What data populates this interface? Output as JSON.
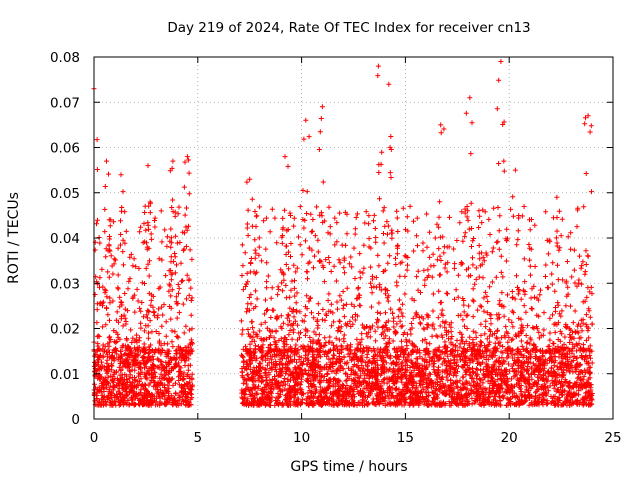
{
  "chart_data": {
    "type": "scatter",
    "title": "Day 219 of 2024, Rate Of TEC Index for receiver cn13",
    "xlabel": "GPS time / hours",
    "ylabel": "ROTI / TECUs",
    "xlim": [
      0,
      25
    ],
    "ylim": [
      0,
      0.08
    ],
    "x_ticks": [
      0,
      5,
      10,
      15,
      20,
      25
    ],
    "x_tick_labels": [
      "0",
      "5",
      "10",
      "15",
      "20",
      "25"
    ],
    "y_ticks": [
      0,
      0.01,
      0.02,
      0.03,
      0.04,
      0.05,
      0.06,
      0.07,
      0.08
    ],
    "y_tick_labels": [
      "0",
      "0.01",
      "0.02",
      "0.03",
      "0.04",
      "0.05",
      "0.06",
      "0.07",
      "0.08"
    ],
    "grid": true,
    "marker": "+",
    "color": "#ff0000",
    "series": [
      {
        "name": "ROTI",
        "segments": [
          {
            "x_start": 0.0,
            "x_end": 4.75,
            "typical_min": 0.003,
            "typical_max": 0.015
          },
          {
            "x_start": 7.1,
            "x_end": 24.0,
            "typical_min": 0.003,
            "typical_max": 0.015
          }
        ],
        "peaks": [
          {
            "x": 0.0,
            "y": 0.073
          },
          {
            "x": 0.6,
            "y": 0.057
          },
          {
            "x": 1.3,
            "y": 0.054
          },
          {
            "x": 2.6,
            "y": 0.056
          },
          {
            "x": 3.8,
            "y": 0.057
          },
          {
            "x": 4.5,
            "y": 0.058
          },
          {
            "x": 7.5,
            "y": 0.053
          },
          {
            "x": 9.2,
            "y": 0.058
          },
          {
            "x": 10.2,
            "y": 0.066
          },
          {
            "x": 11.0,
            "y": 0.069
          },
          {
            "x": 13.7,
            "y": 0.078
          },
          {
            "x": 14.2,
            "y": 0.074
          },
          {
            "x": 16.7,
            "y": 0.065
          },
          {
            "x": 18.1,
            "y": 0.071
          },
          {
            "x": 19.6,
            "y": 0.079
          },
          {
            "x": 20.3,
            "y": 0.055
          },
          {
            "x": 22.3,
            "y": 0.049
          },
          {
            "x": 23.8,
            "y": 0.067
          }
        ]
      }
    ]
  }
}
